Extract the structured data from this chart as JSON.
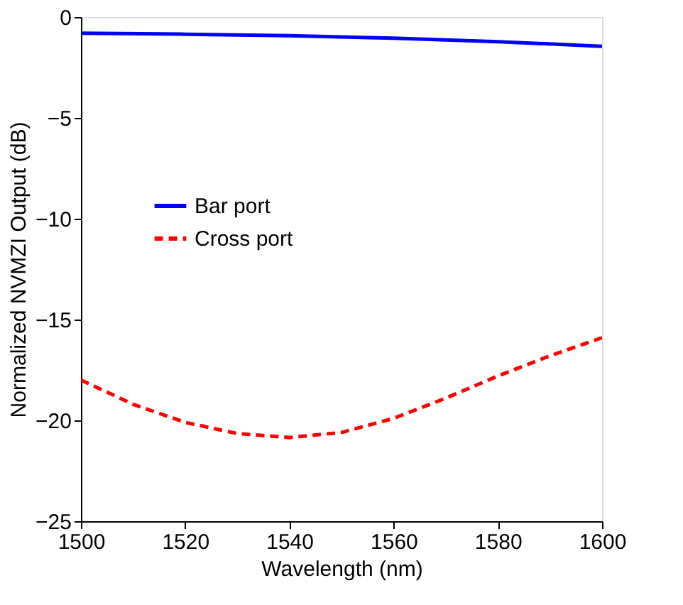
{
  "chart_data": {
    "type": "line",
    "xlabel": "Wavelength (nm)",
    "ylabel": "Normalized NVMZI Output (dB)",
    "xlim": [
      1500,
      1600
    ],
    "xticks": [
      1500,
      1520,
      1540,
      1560,
      1580,
      1600
    ],
    "ylim": [
      -25,
      0
    ],
    "yticks": [
      -25,
      -20,
      -15,
      -10,
      -5,
      0
    ],
    "grid": false,
    "legend": "left",
    "marker": "none",
    "series": [
      {
        "name": "Bar port",
        "color": "#0000ff",
        "line_style": "solid",
        "x": [
          1500,
          1520,
          1540,
          1560,
          1580,
          1600
        ],
        "values": [
          -0.8,
          -0.85,
          -0.92,
          -1.05,
          -1.22,
          -1.45
        ]
      },
      {
        "name": "Cross port",
        "color": "#ff0000",
        "line_style": "dashed",
        "x": [
          1500,
          1510,
          1520,
          1530,
          1540,
          1550,
          1560,
          1570,
          1580,
          1590,
          1600
        ],
        "values": [
          -18.0,
          -19.2,
          -20.1,
          -20.65,
          -20.85,
          -20.6,
          -19.9,
          -18.9,
          -17.8,
          -16.8,
          -15.9
        ]
      }
    ]
  }
}
